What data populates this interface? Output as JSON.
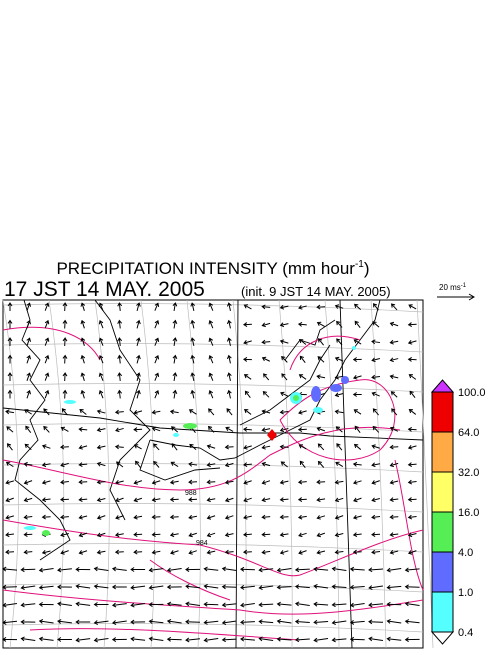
{
  "header": {
    "title": "PRECIPITATION INTENSITY (mm hour",
    "title_sup": "-1",
    "title_end": ")",
    "valid_time": "17 JST 14 MAY. 2005",
    "init_time": "(init. 9 JST 14 MAY. 2005)"
  },
  "wind_scale": {
    "label": "20 ms",
    "sup": "-1"
  },
  "contour_labels": [
    "988",
    "984"
  ],
  "colorbar": {
    "levels": [
      0.4,
      {
        "value": 1,
        "label": "1.0"
      },
      {
        "value": 4,
        "label": "4.0"
      },
      {
        "value": 16,
        "label": "16.0"
      },
      {
        "value": 32,
        "label": "32.0"
      },
      {
        "value": 64,
        "label": "64.0"
      },
      {
        "value": 100,
        "label": "100.0"
      }
    ],
    "colors": [
      "#55ffff",
      "#5f6cff",
      "#55ee55",
      "#ffff66",
      "#ffaa44",
      "#ee0000"
    ],
    "over_color": "#cc33ff",
    "under_color": "#ffffff"
  }
}
